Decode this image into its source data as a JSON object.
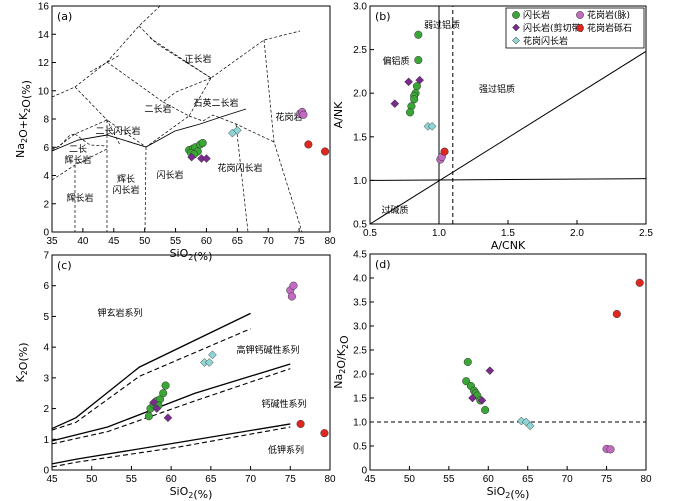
{
  "colors": {
    "diorite": "#3aa635",
    "diorite_shear": "#7a2b8c",
    "granodiorite": "#8fd6d6",
    "granite_vein": "#c36ac2",
    "granite_gravel": "#e0261f"
  },
  "chart_data": [
    {
      "id": "a",
      "type": "scatter",
      "panel_label": "(a)",
      "xlabel": "SiO2(%)",
      "ylabel": "Na2O+K2O(%)",
      "xlim": [
        35,
        80
      ],
      "ylim": [
        0,
        16
      ],
      "xticks": [
        "35",
        "40",
        "45",
        "50",
        "55",
        "60",
        "65",
        "70",
        "75",
        "80"
      ],
      "yticks": [
        "0",
        "2",
        "4",
        "6",
        "8",
        "10",
        "12",
        "14",
        "16"
      ],
      "field_labels": [
        "正长岩",
        "二长岩",
        "石英二长岩",
        "二长闪长岩",
        "花岗岩",
        "二长",
        "辉长岩",
        "辉长",
        "闪长岩",
        "闪长岩",
        "花岗闪长岩",
        "辉长岩"
      ],
      "series": [
        {
          "name": "闪长岩",
          "points": [
            [
              57.2,
              5.8
            ],
            [
              57.8,
              5.9
            ],
            [
              58.2,
              6.0
            ],
            [
              58.6,
              5.7
            ],
            [
              59.0,
              6.2
            ],
            [
              59.4,
              6.3
            ],
            [
              57.5,
              5.6
            ],
            [
              58.0,
              5.5
            ]
          ]
        },
        {
          "name": "闪长岩(剪切带)",
          "points": [
            [
              57.6,
              5.3
            ],
            [
              59.2,
              5.2
            ],
            [
              60.0,
              5.2
            ]
          ]
        },
        {
          "name": "花岗闪长岩",
          "points": [
            [
              64.2,
              7.0
            ],
            [
              65.0,
              7.2
            ]
          ]
        },
        {
          "name": "花岗岩(脉)",
          "points": [
            [
              75.2,
              8.4
            ],
            [
              75.5,
              8.5
            ],
            [
              75.7,
              8.3
            ]
          ]
        },
        {
          "name": "花岗岩砾石",
          "points": [
            [
              76.5,
              6.2
            ],
            [
              79.2,
              5.7
            ]
          ]
        }
      ]
    },
    {
      "id": "b",
      "type": "scatter",
      "panel_label": "(b)",
      "xlabel": "A/CNK",
      "ylabel": "A/NK",
      "xlim": [
        0.5,
        2.5
      ],
      "ylim": [
        0.5,
        3.0
      ],
      "xticks": [
        "0.5",
        "1.0",
        "1.5",
        "2.0",
        "2.5"
      ],
      "yticks": [
        "0.5",
        "1.0",
        "1.5",
        "2.0",
        "2.5",
        "3.0"
      ],
      "field_labels": [
        "弱过铝质",
        "偏铝质",
        "强过铝质",
        "过碱质"
      ],
      "series": [
        {
          "name": "闪长岩",
          "points": [
            [
              0.85,
              2.67
            ],
            [
              0.85,
              2.38
            ],
            [
              0.84,
              2.08
            ],
            [
              0.83,
              2.0
            ],
            [
              0.82,
              1.97
            ],
            [
              0.82,
              1.93
            ],
            [
              0.8,
              1.85
            ],
            [
              0.79,
              1.78
            ]
          ]
        },
        {
          "name": "闪长岩(剪切带)",
          "points": [
            [
              0.68,
              1.88
            ],
            [
              0.78,
              2.13
            ],
            [
              0.86,
              2.15
            ]
          ]
        },
        {
          "name": "花岗闪长岩",
          "points": [
            [
              0.92,
              1.62
            ],
            [
              0.95,
              1.62
            ]
          ]
        },
        {
          "name": "花岗岩(脉)",
          "points": [
            [
              1.01,
              1.24
            ],
            [
              1.02,
              1.27
            ]
          ]
        },
        {
          "name": "花岗岩砾石",
          "points": [
            [
              1.04,
              1.33
            ]
          ]
        }
      ]
    },
    {
      "id": "c",
      "type": "scatter",
      "panel_label": "(c)",
      "xlabel": "SiO2(%)",
      "ylabel": "K2O(%)",
      "xlim": [
        45,
        80
      ],
      "ylim": [
        0,
        7
      ],
      "xticks": [
        "45",
        "50",
        "55",
        "60",
        "65",
        "70",
        "75",
        "80"
      ],
      "yticks": [
        "0",
        "1",
        "2",
        "3",
        "4",
        "5",
        "6",
        "7"
      ],
      "field_labels": [
        "钾玄岩系列",
        "高钾钙碱性系列",
        "钙碱性系列",
        "低钾系列"
      ],
      "series": [
        {
          "name": "闪长岩",
          "points": [
            [
              57.2,
              1.75
            ],
            [
              57.4,
              2.0
            ],
            [
              57.8,
              2.15
            ],
            [
              58.2,
              2.25
            ],
            [
              58.6,
              2.3
            ],
            [
              59.0,
              2.5
            ],
            [
              59.3,
              2.75
            ],
            [
              58.4,
              2.1
            ]
          ]
        },
        {
          "name": "闪长岩(剪切带)",
          "points": [
            [
              57.8,
              2.2
            ],
            [
              58.2,
              2.0
            ],
            [
              59.6,
              1.7
            ]
          ]
        },
        {
          "name": "花岗闪长岩",
          "points": [
            [
              64.2,
              3.5
            ],
            [
              64.8,
              3.5
            ],
            [
              65.2,
              3.75
            ]
          ]
        },
        {
          "name": "花岗岩(脉)",
          "points": [
            [
              75.0,
              5.85
            ],
            [
              75.2,
              5.65
            ],
            [
              75.4,
              6.0
            ]
          ]
        },
        {
          "name": "花岗岩砾石",
          "points": [
            [
              76.3,
              1.5
            ],
            [
              79.3,
              1.2
            ]
          ]
        }
      ]
    },
    {
      "id": "d",
      "type": "scatter",
      "panel_label": "(d)",
      "xlabel": "SiO2(%)",
      "ylabel": "Na2O/K2O",
      "xlim": [
        45,
        80
      ],
      "ylim": [
        0,
        4.5
      ],
      "xticks": [
        "45",
        "50",
        "55",
        "60",
        "65",
        "70",
        "75",
        "80"
      ],
      "yticks": [
        "0",
        "0.5",
        "1.0",
        "1.5",
        "2.0",
        "2.5",
        "3.0",
        "3.5",
        "4.0",
        "4.5"
      ],
      "series": [
        {
          "name": "闪长岩",
          "points": [
            [
              57.4,
              2.25
            ],
            [
              57.2,
              1.85
            ],
            [
              57.8,
              1.75
            ],
            [
              58.2,
              1.65
            ],
            [
              58.4,
              1.6
            ],
            [
              58.6,
              1.55
            ],
            [
              59.0,
              1.45
            ],
            [
              59.6,
              1.25
            ]
          ]
        },
        {
          "name": "闪长岩(剪切带)",
          "points": [
            [
              58.0,
              1.5
            ],
            [
              59.2,
              1.45
            ],
            [
              60.2,
              2.07
            ]
          ]
        },
        {
          "name": "花岗闪长岩",
          "points": [
            [
              64.2,
              1.02
            ],
            [
              64.8,
              1.0
            ],
            [
              65.3,
              0.92
            ]
          ]
        },
        {
          "name": "花岗岩(脉)",
          "points": [
            [
              75.0,
              0.44
            ],
            [
              75.5,
              0.43
            ]
          ]
        },
        {
          "name": "花岗岩砾石",
          "points": [
            [
              76.3,
              3.25
            ],
            [
              79.2,
              3.9
            ]
          ]
        }
      ]
    }
  ],
  "legend": [
    "闪长岩",
    "花岗岩(脉)",
    "闪长岩(剪切带)",
    "花岗岩砾石",
    "花岗闪长岩"
  ]
}
